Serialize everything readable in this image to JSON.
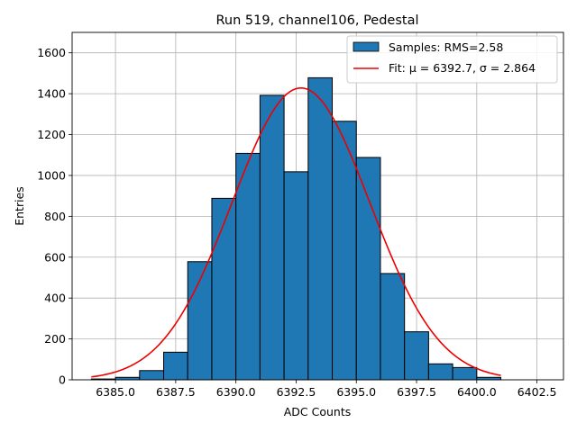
{
  "chart_data": {
    "type": "histogram",
    "title": "Run 519, channel106, Pedestal",
    "xlabel": "ADC Counts",
    "ylabel": "Entries",
    "xlim": [
      6383.2,
      6403.6
    ],
    "ylim": [
      0,
      1700
    ],
    "grid": true,
    "legend_position": "top-right",
    "bin_edges": [
      6384,
      6385,
      6386,
      6387,
      6388,
      6389,
      6390,
      6391,
      6392,
      6393,
      6394,
      6395,
      6396,
      6397,
      6398,
      6399,
      6400,
      6401
    ],
    "counts": [
      4,
      12,
      45,
      135,
      578,
      888,
      1108,
      1392,
      1018,
      1478,
      1265,
      1088,
      520,
      235,
      78,
      60,
      12
    ],
    "bar_color": "#1f77b4",
    "bar_edge_color": "#000000",
    "fit": {
      "mu": 6392.7,
      "sigma": 2.864,
      "amplitude": 1428,
      "x_range": [
        6384,
        6401
      ],
      "color": "#ee0000"
    },
    "xticks": [
      6385.0,
      6387.5,
      6390.0,
      6392.5,
      6395.0,
      6397.5,
      6400.0,
      6402.5
    ],
    "xtick_labels": [
      "6385.0",
      "6387.5",
      "6390.0",
      "6392.5",
      "6395.0",
      "6397.5",
      "6400.0",
      "6402.5"
    ],
    "yticks": [
      0,
      200,
      400,
      600,
      800,
      1000,
      1200,
      1400,
      1600
    ],
    "ytick_labels": [
      "0",
      "200",
      "400",
      "600",
      "800",
      "1000",
      "1200",
      "1400",
      "1600"
    ],
    "legend": {
      "samples_label": "Samples: RMS=2.58",
      "fit_label": "Fit: μ = 6392.7, σ = 2.864"
    }
  }
}
